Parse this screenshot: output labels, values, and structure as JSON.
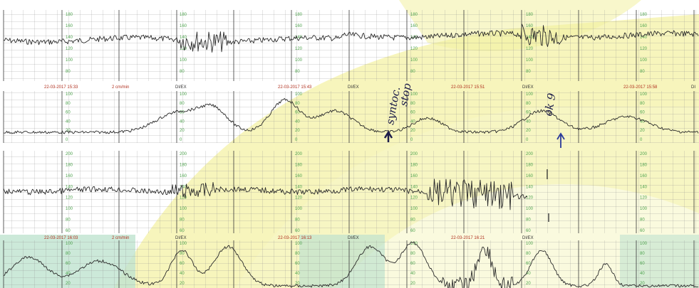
{
  "strip_1": {
    "header": {
      "timestamps": [
        "22-03-2017 15:33",
        "22-03-2017 15:43",
        "22-03-2017 15:51",
        "22-03-2017 15:58"
      ],
      "speed": "2 cm/min",
      "channel_labels": [
        "DI/EX",
        "DI/EX",
        "DI/EX",
        "DI"
      ]
    },
    "fhr_ticks": [
      "180",
      "160",
      "140",
      "120",
      "100",
      "80"
    ],
    "toco_ticks": [
      "100",
      "80",
      "60",
      "40",
      "20",
      "0"
    ],
    "annotations": [
      "syntoc.",
      "stop",
      "ok 9"
    ]
  },
  "strip_2": {
    "header": {
      "timestamps": [
        "22-03-2017 16:03",
        "22-03-2017 16:13",
        "22-03-2017 16:21"
      ],
      "speed": "2 cm/min",
      "channel_labels": [
        "DI/EX",
        "DI/EX",
        "DI/EX"
      ]
    },
    "fhr_ticks": [
      "200",
      "180",
      "160",
      "140",
      "120",
      "100",
      "80",
      "60"
    ],
    "toco_ticks": [
      "100",
      "80",
      "60",
      "40",
      "20"
    ]
  },
  "colors": {
    "paper": "#ffffff",
    "yellow_overlay": "#f4f2a6",
    "green_overlay": "#bfe3cf",
    "grid": "#3a3a3a",
    "tick_green": "#4fa34f",
    "timestamp_red": "#b0301f",
    "pen_blue": "#1d1d4a"
  }
}
